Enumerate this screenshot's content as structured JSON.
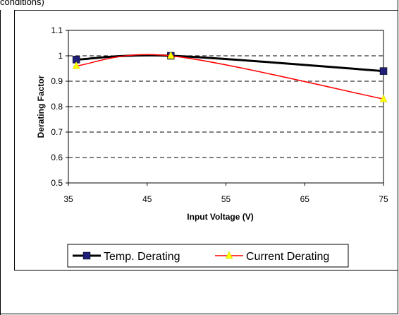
{
  "header": {
    "text": "conditions)"
  },
  "chart_data": {
    "type": "line",
    "xlabel": "Input Voltage (V)",
    "ylabel": "Derating Factor",
    "xlim": [
      35,
      75
    ],
    "ylim": [
      0.5,
      1.1
    ],
    "xticks": [
      "35",
      "45",
      "55",
      "65",
      "75"
    ],
    "yticks": [
      "0.5",
      "0.6",
      "0.7",
      "0.8",
      "0.9",
      "1",
      "1.1"
    ],
    "grid": "horizontal dashed",
    "legend_position": "bottom",
    "series": [
      {
        "name": "Temp. Derating",
        "color": "#000000",
        "marker": "square",
        "marker_color": "#1f1f7a",
        "x": [
          36,
          48,
          75
        ],
        "values": [
          0.985,
          1.0,
          0.94
        ]
      },
      {
        "name": "Current Derating",
        "color": "#ff0000",
        "marker": "triangle",
        "marker_color": "#ffff00",
        "x": [
          36,
          48,
          75
        ],
        "values": [
          0.96,
          1.0,
          0.83
        ]
      }
    ]
  }
}
